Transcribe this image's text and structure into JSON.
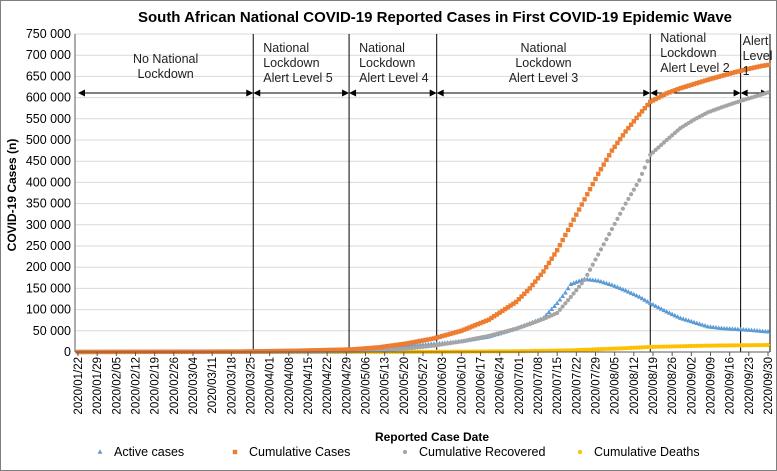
{
  "chart_data": {
    "type": "scatter",
    "title": "South African National COVID-19 Reported Cases in First COVID-19 Epidemic Wave",
    "xlabel": "Reported Case Date",
    "ylabel": "COVID-19 Cases (n)",
    "ylim": [
      0,
      750000
    ],
    "grid": "horizontal",
    "legend": "bottom",
    "x_tick_labels": [
      "2020/01/22",
      "2020/01/29",
      "2020/02/05",
      "2020/02/12",
      "2020/02/19",
      "2020/02/26",
      "2020/03/04",
      "2020/03/11",
      "2020/03/18",
      "2020/03/25",
      "2020/04/01",
      "2020/04/08",
      "2020/04/15",
      "2020/04/22",
      "2020/04/29",
      "2020/05/06",
      "2020/05/13",
      "2020/05/20",
      "2020/05/27",
      "2020/06/03",
      "2020/06/10",
      "2020/06/17",
      "2020/06/24",
      "2020/07/01",
      "2020/07/08",
      "2020/07/15",
      "2020/07/22",
      "2020/07/29",
      "2020/08/05",
      "2020/08/12",
      "2020/08/19",
      "2020/08/26",
      "2020/09/02",
      "2020/09/09",
      "2020/09/16",
      "2020/09/23",
      "2020/09/30"
    ],
    "y_tick_labels": [
      "0",
      "50 000",
      "100 000",
      "150 000",
      "200 000",
      "250 000",
      "300 000",
      "350 000",
      "400 000",
      "450 000",
      "500 000",
      "550 000",
      "600 000",
      "650 000",
      "700 000",
      "750 000"
    ],
    "phases": [
      {
        "label": [
          "No National",
          "Lockdown"
        ],
        "start_day": 0,
        "end_day": 64
      },
      {
        "label": [
          "National",
          "Lockdown",
          "Alert Level 5"
        ],
        "start_day": 64,
        "end_day": 99
      },
      {
        "label": [
          "National",
          "Lockdown",
          "Alert Level 4"
        ],
        "start_day": 99,
        "end_day": 131
      },
      {
        "label": [
          "National",
          "Lockdown",
          "Alert Level 3"
        ],
        "start_day": 131,
        "end_day": 209
      },
      {
        "label": [
          "National",
          "Lockdown",
          "Alert Level 2"
        ],
        "start_day": 209,
        "end_day": 242
      },
      {
        "label": [
          "Alert",
          "Level",
          "1"
        ],
        "start_day": 242,
        "end_day": 252
      }
    ],
    "series": [
      {
        "name": "Active cases",
        "color": "#5b9bd5",
        "marker": "triangle",
        "days": [
          0,
          60,
          70,
          80,
          90,
          100,
          110,
          120,
          130,
          140,
          150,
          160,
          170,
          175,
          178,
          180,
          185,
          190,
          195,
          200,
          205,
          209,
          215,
          220,
          225,
          230,
          235,
          240,
          245,
          250,
          252
        ],
        "values": [
          0,
          500,
          1200,
          2000,
          3000,
          5000,
          8000,
          14000,
          19000,
          25000,
          36000,
          55000,
          80000,
          115000,
          140000,
          160000,
          172000,
          168000,
          158000,
          145000,
          130000,
          115000,
          95000,
          80000,
          70000,
          60000,
          56000,
          54000,
          52000,
          49000,
          48000
        ]
      },
      {
        "name": "Cumulative Cases",
        "color": "#ed7d31",
        "marker": "square",
        "days": [
          0,
          60,
          70,
          80,
          90,
          100,
          110,
          120,
          130,
          140,
          150,
          160,
          165,
          170,
          175,
          180,
          185,
          190,
          195,
          200,
          205,
          209,
          215,
          220,
          225,
          230,
          235,
          240,
          245,
          250,
          252
        ],
        "values": [
          0,
          1000,
          2000,
          3000,
          4500,
          6000,
          11000,
          20000,
          32000,
          50000,
          76000,
          118000,
          150000,
          190000,
          240000,
          300000,
          360000,
          420000,
          475000,
          520000,
          560000,
          590000,
          610000,
          622000,
          632000,
          642000,
          651000,
          660000,
          668000,
          675000,
          677000
        ]
      },
      {
        "name": "Cumulative Recovered",
        "color": "#a5a5a5",
        "marker": "circle",
        "days": [
          0,
          60,
          70,
          80,
          90,
          100,
          110,
          120,
          130,
          140,
          150,
          160,
          165,
          170,
          175,
          180,
          185,
          190,
          195,
          200,
          205,
          209,
          215,
          220,
          225,
          230,
          235,
          240,
          245,
          250,
          252
        ],
        "values": [
          0,
          0,
          200,
          500,
          1000,
          2000,
          4000,
          8000,
          15000,
          25000,
          38000,
          55000,
          66000,
          78000,
          92000,
          130000,
          170000,
          230000,
          290000,
          350000,
          405000,
          465000,
          500000,
          528000,
          548000,
          565000,
          577000,
          588000,
          598000,
          608000,
          612000
        ]
      },
      {
        "name": "Cumulative Deaths",
        "color": "#ffc000",
        "marker": "circle",
        "days": [
          0,
          60,
          100,
          130,
          160,
          180,
          200,
          209,
          230,
          252
        ],
        "values": [
          0,
          0,
          100,
          500,
          1800,
          4000,
          9000,
          12000,
          15000,
          16500
        ]
      }
    ]
  }
}
